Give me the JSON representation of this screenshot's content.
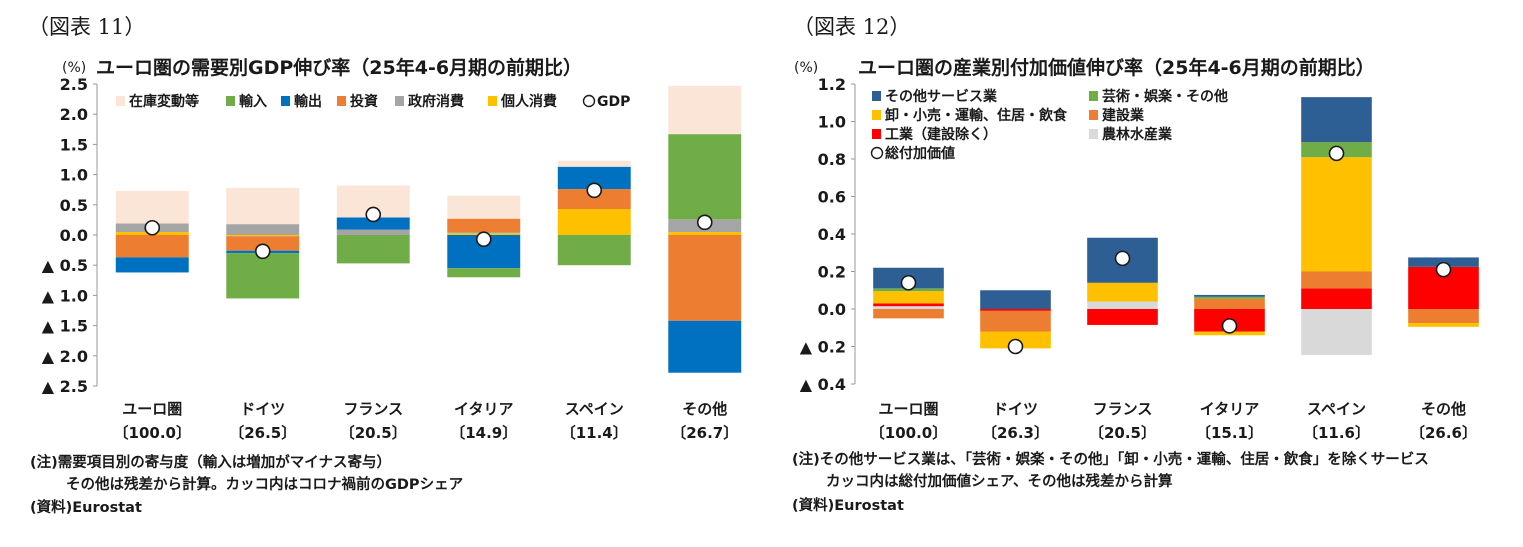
{
  "chart_data": [
    {
      "type": "bar",
      "stacked": true,
      "figure_label": "（図表 11）",
      "title": "ユーロ圏の需要別GDP伸び率（25年4-6月期の前期比）",
      "ylabel": "(%)",
      "ylim": [
        -2.5,
        2.5
      ],
      "ytick_values": [
        2.5,
        2.0,
        1.5,
        1.0,
        0.5,
        0.0,
        -0.5,
        -1.0,
        -1.5,
        -2.0,
        -2.5
      ],
      "ytick_labels": [
        "2.5",
        "2.0",
        "1.5",
        "1.0",
        "0.5",
        "0.0",
        "▲ 0.5",
        "▲ 1.0",
        "▲ 1.5",
        "▲ 2.0",
        "▲ 2.5"
      ],
      "categories": [
        "ユーロ圏",
        "ドイツ",
        "フランス",
        "イタリア",
        "スペイン",
        "その他"
      ],
      "category_shares": [
        "〔100.0〕",
        "〔26.5〕",
        "〔20.5〕",
        "〔14.9〕",
        "〔11.4〕",
        "〔26.7〕"
      ],
      "series": [
        {
          "name": "個人消費",
          "color": "#ffc000",
          "values": [
            0.05,
            -0.02,
            0.0,
            0.03,
            0.43,
            0.05
          ]
        },
        {
          "name": "政府消費",
          "color": "#a5a5a5",
          "values": [
            0.14,
            0.18,
            0.09,
            0.02,
            0.0,
            0.21
          ]
        },
        {
          "name": "投資",
          "color": "#ed7d31",
          "values": [
            -0.37,
            -0.24,
            0.0,
            0.22,
            0.33,
            -1.42
          ]
        },
        {
          "name": "輸出",
          "color": "#0070c0",
          "values": [
            -0.25,
            -0.04,
            0.2,
            -0.55,
            0.37,
            -0.86
          ]
        },
        {
          "name": "輸入",
          "color": "#70ad47",
          "values": [
            0.0,
            -0.75,
            -0.47,
            -0.15,
            -0.5,
            1.41
          ]
        },
        {
          "name": "在庫変動等",
          "color": "#fbe5d6",
          "values": [
            0.54,
            0.6,
            0.53,
            0.38,
            0.1,
            0.8
          ]
        }
      ],
      "dot_series": {
        "name": "GDP",
        "values": [
          0.12,
          -0.27,
          0.34,
          -0.07,
          0.74,
          0.21
        ]
      },
      "legend_order": [
        "在庫変動等",
        "輸入",
        "輸出",
        "投資",
        "政府消費",
        "個人消費",
        "GDP"
      ],
      "notes": [
        "(注)需要項目別の寄与度（輸入は増加がマイナス寄与）",
        "その他は残差から計算。カッコ内はコロナ禍前のGDPシェア",
        "(資料)Eurostat"
      ]
    },
    {
      "type": "bar",
      "stacked": true,
      "figure_label": "（図表 12）",
      "title": "ユーロ圏の産業別付加価値伸び率（25年4-6月期の前期比）",
      "ylabel": "(%)",
      "ylim": [
        -0.4,
        1.2
      ],
      "ytick_values": [
        1.2,
        1.0,
        0.8,
        0.6,
        0.4,
        0.2,
        0.0,
        -0.2,
        -0.4
      ],
      "ytick_labels": [
        "1.2",
        "1.0",
        "0.8",
        "0.6",
        "0.4",
        "0.2",
        "0.0",
        "▲ 0.2",
        "▲ 0.4"
      ],
      "categories": [
        "ユーロ圏",
        "ドイツ",
        "フランス",
        "イタリア",
        "スペイン",
        "その他"
      ],
      "category_shares": [
        "〔100.0〕",
        "〔26.3〕",
        "〔20.5〕",
        "〔15.1〕",
        "〔11.6〕",
        "〔26.6〕"
      ],
      "series": [
        {
          "name": "農林水産業",
          "color": "#d9d9d9",
          "values": [
            0.015,
            0.0,
            0.04,
            0.0,
            -0.245,
            0.0
          ]
        },
        {
          "name": "工業（建設除く）",
          "color": "#ff0000",
          "values": [
            0.015,
            -0.01,
            -0.085,
            -0.12,
            0.11,
            0.225
          ]
        },
        {
          "name": "建設業",
          "color": "#ed7d31",
          "values": [
            -0.05,
            -0.11,
            0.0,
            0.055,
            0.09,
            -0.075
          ]
        },
        {
          "name": "卸・小売・運輸、住居・飲食",
          "color": "#ffc000",
          "values": [
            0.065,
            -0.09,
            0.1,
            -0.02,
            0.61,
            -0.02
          ]
        },
        {
          "name": "芸術・娯楽・その他",
          "color": "#70ad47",
          "values": [
            0.015,
            0.0,
            0.0,
            0.01,
            0.08,
            0.0
          ]
        },
        {
          "name": "その他サービス業",
          "color": "#2e5f94",
          "values": [
            0.11,
            0.1,
            0.24,
            0.01,
            0.24,
            0.05
          ]
        }
      ],
      "dot_series": {
        "name": "総付加価値",
        "values": [
          0.14,
          -0.2,
          0.27,
          -0.09,
          0.83,
          0.21
        ]
      },
      "legend_order": [
        "その他サービス業",
        "芸術・娯楽・その他",
        "卸・小売・運輸、住居・飲食",
        "建設業",
        "工業（建設除く）",
        "農林水産業",
        "総付加価値"
      ],
      "notes": [
        "(注)その他サービス業は、「芸術・娯楽・その他」「卸・小売・運輸、住居・飲食」を除くサービス",
        "カッコ内は総付加価値シェア、その他は残差から計算",
        "(資料)Eurostat"
      ]
    }
  ]
}
